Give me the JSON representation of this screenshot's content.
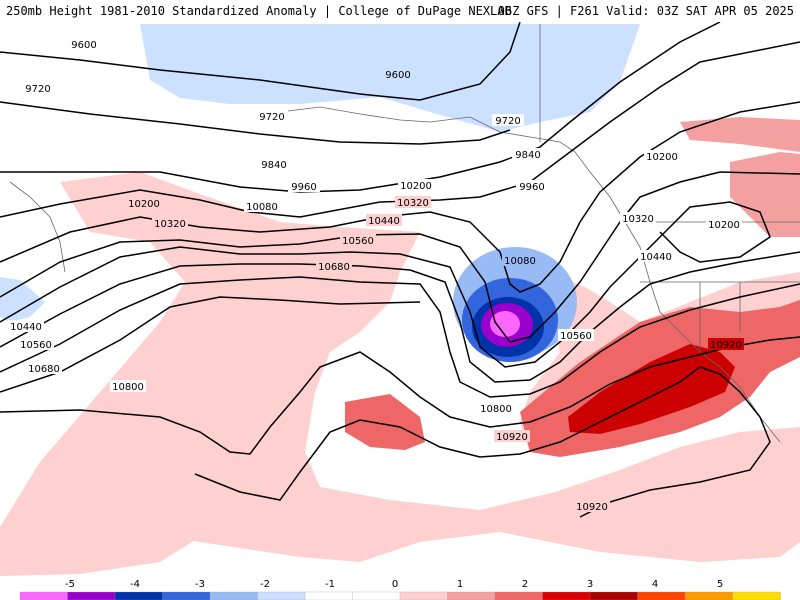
{
  "header": {
    "title": "250mb Height 1981-2010 Standardized Anomaly | College of DuPage NEXLAB",
    "run": "06Z GFS | F261 Valid: 03Z SAT APR 05 2025"
  },
  "contours": [
    {
      "label": "9600"
    },
    {
      "label": "9600"
    },
    {
      "label": "9720"
    },
    {
      "label": "9720"
    },
    {
      "label": "9720"
    },
    {
      "label": "9840"
    },
    {
      "label": "9840"
    },
    {
      "label": "9960"
    },
    {
      "label": "9960"
    },
    {
      "label": "10080"
    },
    {
      "label": "10080"
    },
    {
      "label": "10200"
    },
    {
      "label": "10200"
    },
    {
      "label": "10200"
    },
    {
      "label": "10200"
    },
    {
      "label": "10320"
    },
    {
      "label": "10320"
    },
    {
      "label": "10320"
    },
    {
      "label": "10440"
    },
    {
      "label": "10440"
    },
    {
      "label": "10440"
    },
    {
      "label": "10560"
    },
    {
      "label": "10560"
    },
    {
      "label": "10560"
    },
    {
      "label": "10680"
    },
    {
      "label": "10680"
    },
    {
      "label": "10800"
    },
    {
      "label": "10800"
    },
    {
      "label": "10920"
    },
    {
      "label": "10920"
    },
    {
      "label": "10920"
    }
  ],
  "colorbar": {
    "ticks": [
      "-5",
      "-4",
      "-3",
      "-2",
      "-1",
      "0",
      "1",
      "2",
      "3",
      "4",
      "5"
    ],
    "colors": [
      "#ff66ff",
      "#9900cc",
      "#0033aa",
      "#3366dd",
      "#99bbf5",
      "#cce0ff",
      "#ffffff",
      "#ffffff",
      "#ffd0d0",
      "#f4a0a0",
      "#ee6666",
      "#dd0000",
      "#aa0000",
      "#ff4400",
      "#ff9900",
      "#ffdd00"
    ]
  }
}
